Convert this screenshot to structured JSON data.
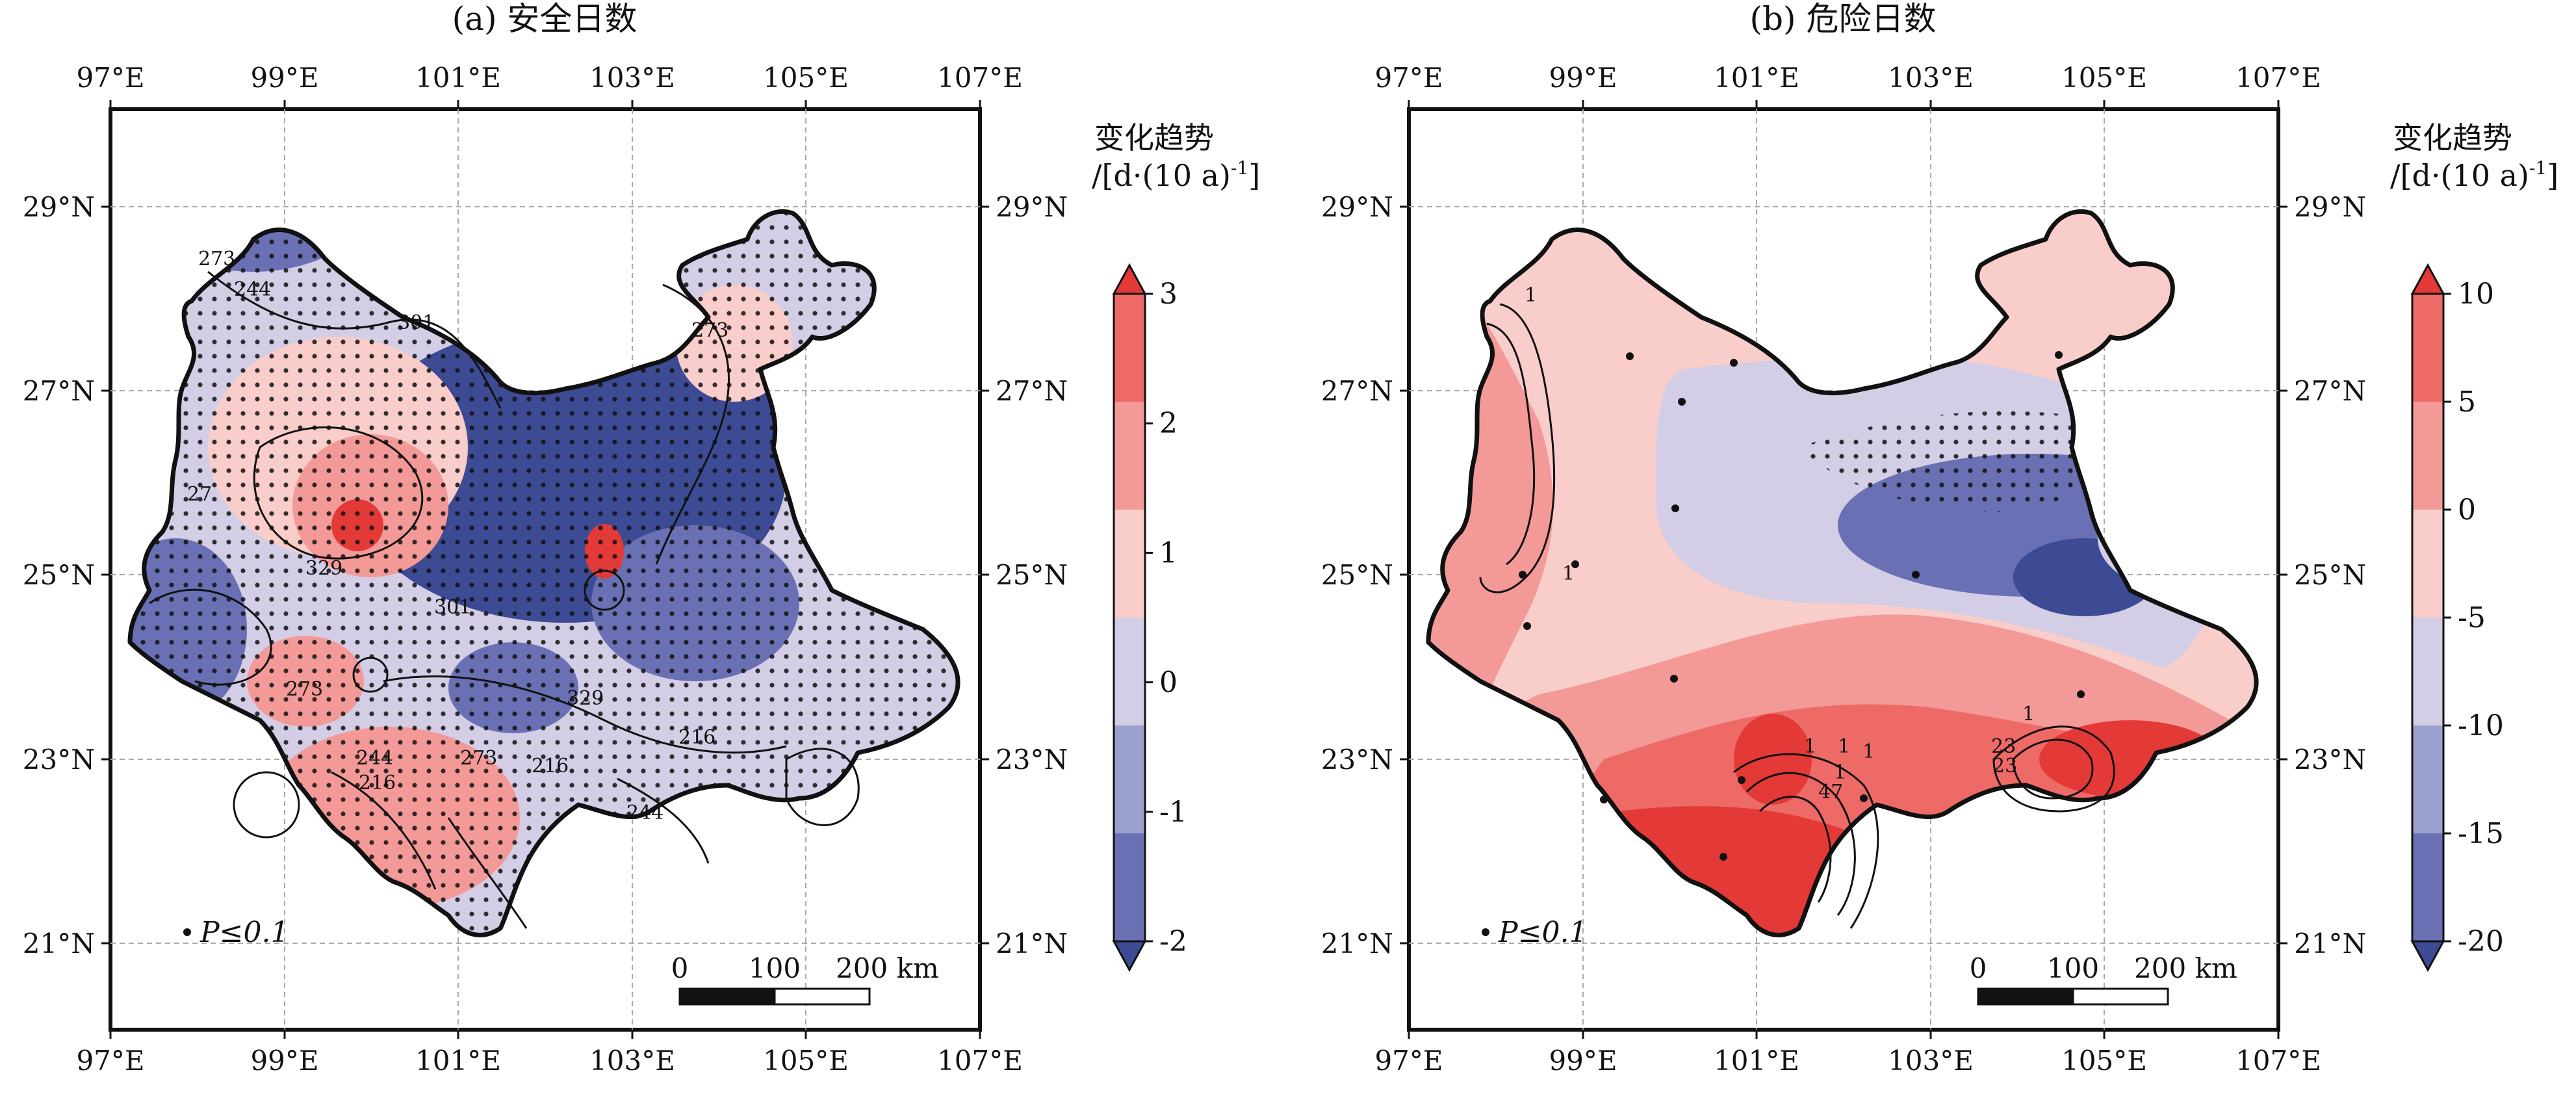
{
  "panels": [
    {
      "id": "a",
      "title": "(a) 安全日数",
      "x_ticks": [
        "97°E",
        "99°E",
        "101°E",
        "103°E",
        "105°E",
        "107°E"
      ],
      "y_ticks": [
        "29°N",
        "27°N",
        "25°N",
        "23°N",
        "21°N"
      ],
      "colorbar": {
        "title_line1": "变化趋势",
        "title_line2": "/[d·(10 a)",
        "title_sup": "-1",
        "title_end": "]",
        "tick_labels": [
          "3",
          "2",
          "1",
          "0",
          "-1",
          "-2"
        ],
        "colors": [
          "#e33a37",
          "#ee6a66",
          "#f39a98",
          "#f9cdca",
          "#d3cde6",
          "#9ca0cf",
          "#6970b3",
          "#3d4a94"
        ]
      },
      "contour_labels": [
        "273",
        "244",
        "301",
        "273",
        "27",
        "329",
        "301",
        "273",
        "244",
        "216",
        "273",
        "216",
        "329",
        "216",
        "244"
      ],
      "significance_label": "P≤0.1",
      "scale_bar": {
        "ticks": [
          "0",
          "100"
        ],
        "end_label": "200 km"
      }
    },
    {
      "id": "b",
      "title": "(b) 危险日数",
      "x_ticks": [
        "97°E",
        "99°E",
        "101°E",
        "103°E",
        "105°E",
        "107°E"
      ],
      "y_ticks": [
        "29°N",
        "27°N",
        "25°N",
        "23°N",
        "21°N"
      ],
      "colorbar": {
        "title_line1": "变化趋势",
        "title_line2": "/[d·(10 a)",
        "title_sup": "-1",
        "title_end": "]",
        "tick_labels": [
          "10",
          "5",
          "0",
          "-5",
          "-10",
          "-15",
          "-20"
        ],
        "colors": [
          "#e33a37",
          "#ee6a66",
          "#f39a98",
          "#f9cdca",
          "#d3cde6",
          "#9ca0cf",
          "#6970b3",
          "#3d4a94"
        ]
      },
      "contour_labels": [
        "1",
        "1",
        "1",
        "1",
        "1",
        "1",
        "47",
        "1",
        "23",
        "23"
      ],
      "significance_label": "P≤0.1",
      "scale_bar": {
        "ticks": [
          "0",
          "100"
        ],
        "end_label": "200 km"
      }
    }
  ]
}
